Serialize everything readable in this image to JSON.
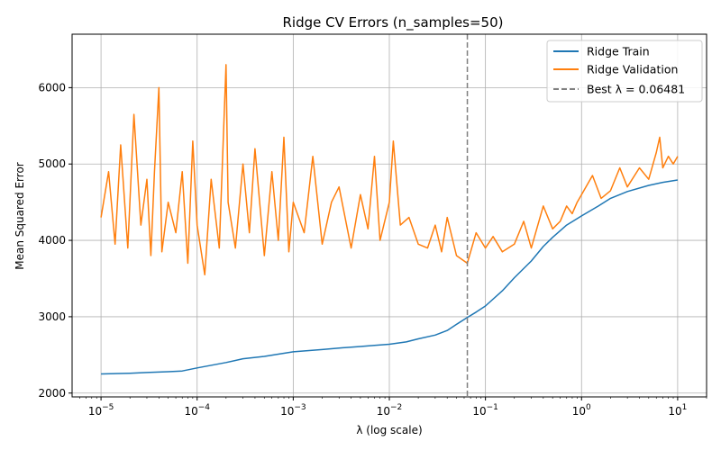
{
  "chart_data": {
    "type": "line",
    "title": "Ridge CV Errors (n_samples=50)",
    "xlabel": "λ (log scale)",
    "ylabel": "Mean Squared Error",
    "xscale": "log",
    "xlim": [
      5e-06,
      20
    ],
    "ylim": [
      1950,
      6700
    ],
    "grid": true,
    "legend_position": "upper right",
    "x_ticks": [
      {
        "value": 1e-05,
        "base": "10",
        "exp": "−5"
      },
      {
        "value": 0.0001,
        "base": "10",
        "exp": "−4"
      },
      {
        "value": 0.001,
        "base": "10",
        "exp": "−3"
      },
      {
        "value": 0.01,
        "base": "10",
        "exp": "−2"
      },
      {
        "value": 0.1,
        "base": "10",
        "exp": "−1"
      },
      {
        "value": 1,
        "base": "10",
        "exp": "0"
      },
      {
        "value": 10,
        "base": "10",
        "exp": "1"
      }
    ],
    "y_ticks": [
      2000,
      3000,
      4000,
      5000,
      6000
    ],
    "best_lambda": 0.06481,
    "series": [
      {
        "name": "Ridge Train",
        "color": "#1f77b4",
        "x": [
          1e-05,
          2e-05,
          3e-05,
          5e-05,
          7e-05,
          0.0001,
          0.0002,
          0.0003,
          0.0005,
          0.0007,
          0.001,
          0.002,
          0.003,
          0.005,
          0.007,
          0.01,
          0.015,
          0.02,
          0.03,
          0.04,
          0.05,
          0.06481,
          0.08,
          0.1,
          0.15,
          0.2,
          0.3,
          0.4,
          0.5,
          0.7,
          1,
          1.5,
          2,
          3,
          5,
          7,
          10
        ],
        "y": [
          2250,
          2260,
          2270,
          2280,
          2290,
          2330,
          2400,
          2450,
          2480,
          2510,
          2540,
          2570,
          2590,
          2610,
          2625,
          2640,
          2670,
          2710,
          2760,
          2820,
          2900,
          2990,
          3060,
          3140,
          3340,
          3510,
          3730,
          3920,
          4040,
          4200,
          4320,
          4450,
          4550,
          4640,
          4720,
          4760,
          4790
        ]
      },
      {
        "name": "Ridge Validation",
        "color": "#ff7f0e",
        "x": [
          1e-05,
          1.2e-05,
          1.4e-05,
          1.6e-05,
          1.9e-05,
          2.2e-05,
          2.6e-05,
          3e-05,
          3.3e-05,
          3.6e-05,
          4e-05,
          4.3e-05,
          5e-05,
          6e-05,
          7e-05,
          8e-05,
          9e-05,
          0.0001,
          0.00012,
          0.00014,
          0.00017,
          0.0002,
          0.00021,
          0.00025,
          0.0003,
          0.00035,
          0.0004,
          0.0005,
          0.0006,
          0.0007,
          0.0008,
          0.0009,
          0.001,
          0.0013,
          0.0016,
          0.002,
          0.0025,
          0.003,
          0.004,
          0.005,
          0.006,
          0.007,
          0.008,
          0.01,
          0.011,
          0.013,
          0.016,
          0.02,
          0.025,
          0.03,
          0.035,
          0.04,
          0.05,
          0.06481,
          0.08,
          0.1,
          0.12,
          0.15,
          0.2,
          0.25,
          0.3,
          0.4,
          0.5,
          0.6,
          0.7,
          0.8,
          0.9,
          1,
          1.3,
          1.6,
          2,
          2.5,
          3,
          4,
          5,
          6,
          6.5,
          7,
          8,
          9,
          10
        ],
        "y": [
          4300,
          4900,
          3950,
          5250,
          3900,
          5650,
          4200,
          4800,
          3800,
          4900,
          6000,
          3850,
          4500,
          4100,
          4900,
          3700,
          5300,
          4200,
          3550,
          4800,
          3900,
          6300,
          4500,
          3900,
          5000,
          4100,
          5200,
          3800,
          4900,
          4000,
          5350,
          3850,
          4500,
          4100,
          5100,
          3950,
          4500,
          4700,
          3900,
          4600,
          4150,
          5100,
          4000,
          4500,
          5300,
          4200,
          4300,
          3950,
          3900,
          4200,
          3850,
          4300,
          3800,
          3700,
          4100,
          3900,
          4050,
          3850,
          3950,
          4250,
          3900,
          4450,
          4150,
          4250,
          4450,
          4350,
          4500,
          4600,
          4850,
          4550,
          4650,
          4950,
          4700,
          4950,
          4800,
          5150,
          5350,
          4950,
          5100,
          5000,
          5100
        ]
      }
    ],
    "legend": {
      "train_label": "Ridge Train",
      "val_label": "Ridge Validation",
      "best_label": "Best λ = 0.06481"
    },
    "best_line_color": "#7f7f7f"
  }
}
